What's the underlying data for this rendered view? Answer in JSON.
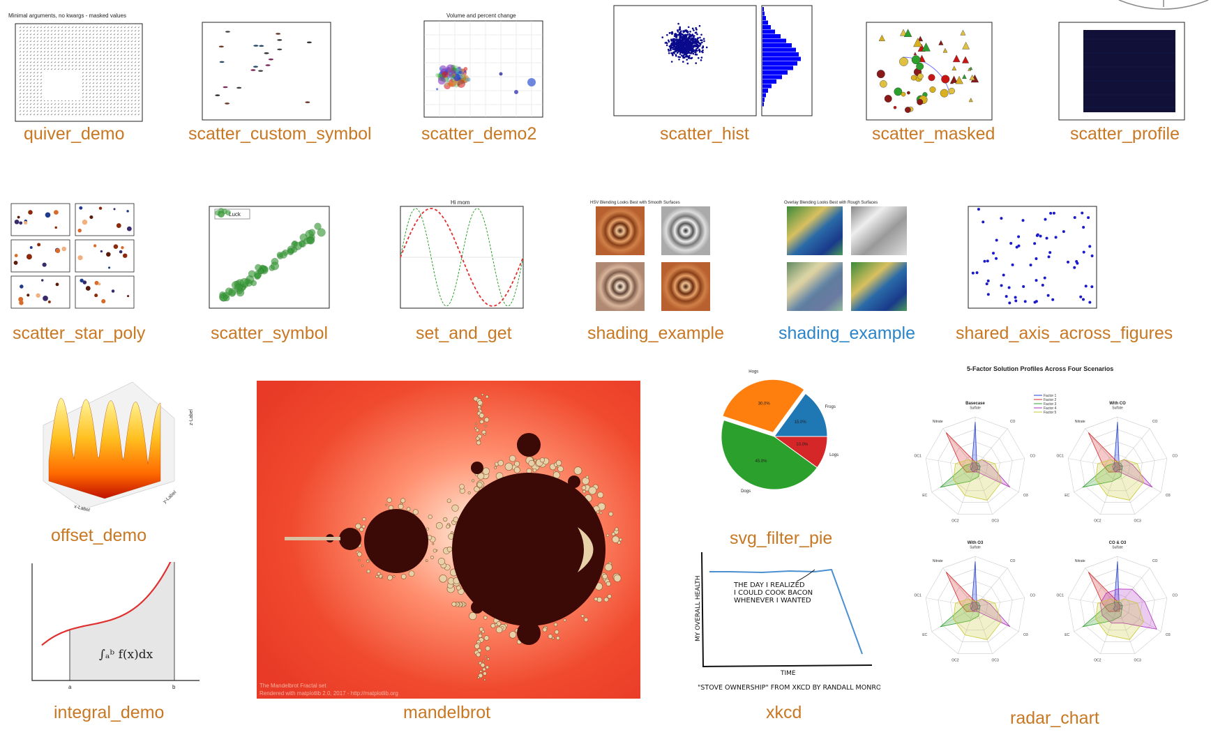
{
  "colors": {
    "link": "#c87823",
    "link_visited": "#2c84c8",
    "mandel_bg": "#f04a2e",
    "mandel_set": "#3c0a06",
    "pie_orange": "#ff7f0e",
    "pie_blue": "#1f77b4",
    "pie_green": "#2ca02c",
    "pie_red": "#d62728"
  },
  "gallery": {
    "row1": [
      {
        "caption": "quiver_demo",
        "thumb_title": "Minimal arguments, no kwargs - masked values",
        "icon": "quiver-plot"
      },
      {
        "caption": "scatter_custom_symbol",
        "icon": "scatter-plot"
      },
      {
        "caption": "scatter_demo2",
        "thumb_title": "Volume and percent change",
        "icon": "bubble-scatter-plot"
      },
      {
        "caption": "scatter_hist",
        "icon": "scatter-histogram-plot"
      },
      {
        "caption": "scatter_masked",
        "icon": "masked-scatter-plot"
      },
      {
        "caption": "scatter_profile",
        "icon": "dense-scatter-plot"
      }
    ],
    "row2": [
      {
        "caption": "scatter_star_poly",
        "icon": "star-poly-grid"
      },
      {
        "caption": "scatter_symbol",
        "legend": "Luck",
        "icon": "clover-scatter-plot"
      },
      {
        "caption": "set_and_get",
        "thumb_title": "Hi mom",
        "icon": "sine-plot"
      },
      {
        "caption": "shading_example",
        "thumb_title": "HSV Blending Looks Best with Smooth Surfaces",
        "icon": "shading-grid"
      },
      {
        "caption": "shading_example",
        "visited": true,
        "thumb_title": "Overlay Blending Looks Best with Rough Surfaces",
        "icon": "terrain-grid"
      },
      {
        "caption": "shared_axis_across_figures",
        "icon": "sparse-scatter-plot"
      }
    ],
    "offset_demo": {
      "caption": "offset_demo",
      "xlabel": "x-Label",
      "ylabel": "y-Label",
      "zlabel": "z-Label",
      "icon": "surface-3d-plot"
    },
    "integral_demo": {
      "caption": "integral_demo",
      "formula": "∫ₐᵇ f(x)dx",
      "tick_a": "a",
      "tick_b": "b",
      "icon": "integral-plot"
    },
    "mandelbrot": {
      "caption": "mandelbrot",
      "credit_line1": "The Mandelbrot Fractal set",
      "credit_line2": "Rendered with matplotlib 2.0, 2017 - http://matplotlib.org",
      "icon": "mandelbrot-fractal"
    },
    "svg_filter_pie": {
      "caption": "svg_filter_pie",
      "slices": [
        {
          "label": "Frogs",
          "pct": "15.0%",
          "value": 15
        },
        {
          "label": "Hogs",
          "pct": "30.0%",
          "value": 30
        },
        {
          "label": "Dogs",
          "pct": "45.0%",
          "value": 45
        },
        {
          "label": "Logs",
          "pct": "10.0%",
          "value": 10
        }
      ],
      "icon": "pie-chart"
    },
    "xkcd": {
      "caption": "xkcd",
      "note_line1": "THE DAY I REALIZED",
      "note_line2": "I COULD COOK BACON",
      "note_line3": "WHENEVER I WANTED",
      "ylabel": "MY OVERALL HEALTH",
      "xlabel": "TIME",
      "footer": "\"STOVE OWNERSHIP\" FROM XKCD BY RANDALL MONROE",
      "icon": "xkcd-line-plot"
    },
    "radar_chart": {
      "caption": "radar_chart",
      "title": "5-Factor Solution Profiles Across Four Scenarios",
      "panels": [
        "Basecase",
        "With CO",
        "With O3",
        "CO & O3"
      ],
      "legend": [
        "Factor 1",
        "Factor 2",
        "Factor 3",
        "Factor 4",
        "Factor 5"
      ],
      "spokes": [
        "Sulfate",
        "CO",
        "CO",
        "O3",
        "OC3",
        "OC2",
        "EC",
        "OC1",
        "Nitrate"
      ],
      "icon": "radar-chart"
    }
  }
}
